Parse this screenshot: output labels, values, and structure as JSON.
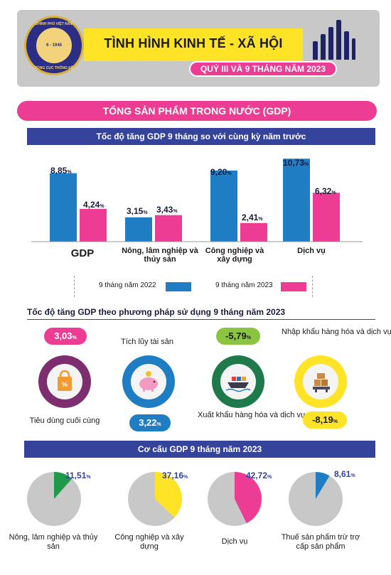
{
  "header": {
    "title": "TÌNH HÌNH KINH TẾ - XÃ HỘI",
    "subtitle": "QUÝ III VÀ 9 THÁNG NĂM 2023",
    "logo_top": "CHÍNH PHỦ VIỆT NAM",
    "logo_year": "6 - 1946",
    "logo_bottom": "TỔNG CỤC THỐNG KÊ"
  },
  "section_title": "TỔNG SẢN PHẨM TRONG NƯỚC (GDP)",
  "growth": {
    "heading": "Tốc độ tăng GDP 9 tháng so với cùng kỳ năm trước",
    "legend": [
      "9 tháng năm 2022",
      "9 tháng năm 2023"
    ],
    "colors": [
      "#1f7ec3",
      "#ec3c94"
    ],
    "labels_2022": [
      "8,85",
      "3,15",
      "9,20",
      "10,73"
    ],
    "labels_2023": [
      "4,24",
      "3,43",
      "2,41",
      "6,32"
    ],
    "cat_0": "GDP",
    "cat_1": "Nông, lâm nghiệp và thủy sản",
    "cat_2": "Công nghiệp và xây dựng",
    "cat_3": "Dịch vụ",
    "pct": "%"
  },
  "chart_data": [
    {
      "type": "bar",
      "title": "Tốc độ tăng GDP 9 tháng so với cùng kỳ năm trước",
      "categories": [
        "GDP",
        "Nông, lâm nghiệp và thủy sản",
        "Công nghiệp và xây dựng",
        "Dịch vụ"
      ],
      "series": [
        {
          "name": "9 tháng năm 2022",
          "values": [
            8.85,
            3.15,
            9.2,
            10.73
          ]
        },
        {
          "name": "9 tháng năm 2023",
          "values": [
            4.24,
            3.43,
            2.41,
            6.32
          ]
        }
      ],
      "unit": "%",
      "ylim": [
        0,
        11
      ]
    },
    {
      "type": "table",
      "title": "Tốc độ tăng GDP theo phương pháp sử dụng 9 tháng năm 2023",
      "categories": [
        "Tiêu dùng cuối cùng",
        "Tích lũy tài sản",
        "Xuất khẩu hàng hóa và dịch vụ",
        "Nhập khẩu hàng hóa và dịch vụ"
      ],
      "values": [
        3.03,
        3.22,
        -5.79,
        -8.19
      ],
      "unit": "%"
    },
    {
      "type": "pie",
      "title": "Cơ cấu GDP 9 tháng năm 2023",
      "categories": [
        "Nông, lâm nghiệp và thủy sản",
        "Công nghiệp và xây dựng",
        "Dịch vụ",
        "Thuế sản phẩm trừ trợ cấp sản phẩm"
      ],
      "values": [
        11.51,
        37.16,
        42.72,
        8.61
      ],
      "unit": "%"
    }
  ],
  "usage": {
    "heading": "Tốc độ tăng GDP theo phương pháp sử dụng 9 tháng năm 2023",
    "items": [
      {
        "label": "Tiêu dùng cuối cùng",
        "value": "3,03",
        "color": "#ec3c94",
        "ring": "#7d2e6e",
        "icon": "shopping-bag-icon"
      },
      {
        "label": "Tích lũy tài sản",
        "value": "3,22",
        "color": "#1f7ec3",
        "ring": "#1f7ec3",
        "icon": "piggy-bank-icon"
      },
      {
        "label": "Xuất khẩu hàng hóa và dịch vụ",
        "value": "-5,79",
        "color": "#8bc53f",
        "ring": "#1e7a4a",
        "icon": "cargo-ship-icon"
      },
      {
        "label": "Nhập khẩu hàng hóa và dịch vụ",
        "value": "-8,19",
        "color": "#ffe326",
        "ring": "#ffe326",
        "icon": "cargo-scale-icon"
      }
    ]
  },
  "structure": {
    "heading": "Cơ cấu GDP 9 tháng năm 2023",
    "values": [
      "11,51",
      "37,16",
      "42,72",
      "8,61"
    ],
    "label_0": "Nông, lâm nghiệp và thủy sản",
    "label_1": "Công nghiệp và xây dựng",
    "label_2": "Dịch vụ",
    "label_3": "Thuế sản phẩm trừ trợ cấp sản phẩm",
    "colors": [
      "#1e9a4a",
      "#ffe326",
      "#ec3c94",
      "#1f7ec3"
    ],
    "base_color": "#c8c8c8"
  }
}
